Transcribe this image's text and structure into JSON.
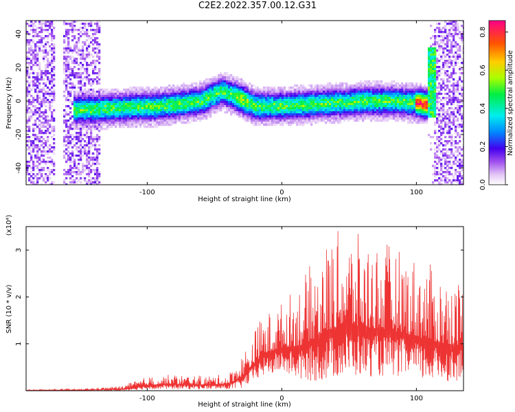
{
  "title": "C2E2.2022.357.00.12.G31",
  "chart_data": [
    {
      "type": "heatmap",
      "xlabel": "Height of straight line (km)",
      "ylabel": "Frequency (Hz)",
      "xlim": [
        -190,
        135
      ],
      "ylim": [
        -50,
        48
      ],
      "xticks": [
        -100,
        0,
        100
      ],
      "yticks": [
        -40,
        -20,
        0,
        20,
        40
      ],
      "colorbar": {
        "label": "Normalized spectral amplitude",
        "range": [
          0,
          0.86
        ],
        "ticks": [
          0.0,
          0.2,
          0.4,
          0.6,
          0.8
        ]
      },
      "ridge": {
        "x": [
          -190,
          -150,
          -120,
          -90,
          -60,
          -45,
          -35,
          -20,
          0,
          20,
          40,
          60,
          80,
          100,
          107,
          110,
          112
        ],
        "freq": [
          -7,
          -5,
          -4,
          -3,
          0,
          6,
          3,
          -3,
          -3,
          -2,
          -1,
          0,
          0,
          -1,
          -2,
          10,
          0
        ]
      }
    },
    {
      "type": "line",
      "xlabel": "Height of straight line (km)",
      "ylabel": "SNR (10 * v/v)",
      "yscale_label": "(x10⁴)",
      "xlim": [
        -190,
        135
      ],
      "ylim": [
        0,
        3.5
      ],
      "xticks": [
        -100,
        0,
        100
      ],
      "yticks": [
        1,
        2,
        3
      ],
      "color": "#ee3333",
      "envelope": {
        "x": [
          -190,
          -150,
          -120,
          -100,
          -80,
          -60,
          -40,
          -30,
          -15,
          0,
          15,
          30,
          45,
          60,
          75,
          90,
          105,
          120,
          135
        ],
        "max": [
          0.02,
          0.04,
          0.1,
          0.3,
          0.35,
          0.32,
          0.35,
          0.75,
          1.6,
          1.9,
          2.4,
          3.1,
          3.5,
          3.3,
          3.2,
          3.0,
          2.8,
          2.5,
          2.4
        ],
        "min": [
          0.0,
          0.0,
          0.0,
          0.03,
          0.03,
          0.03,
          0.03,
          0.05,
          0.3,
          0.4,
          0.2,
          0.2,
          0.3,
          0.3,
          0.3,
          0.3,
          0.2,
          0.2,
          0.2
        ]
      }
    }
  ]
}
